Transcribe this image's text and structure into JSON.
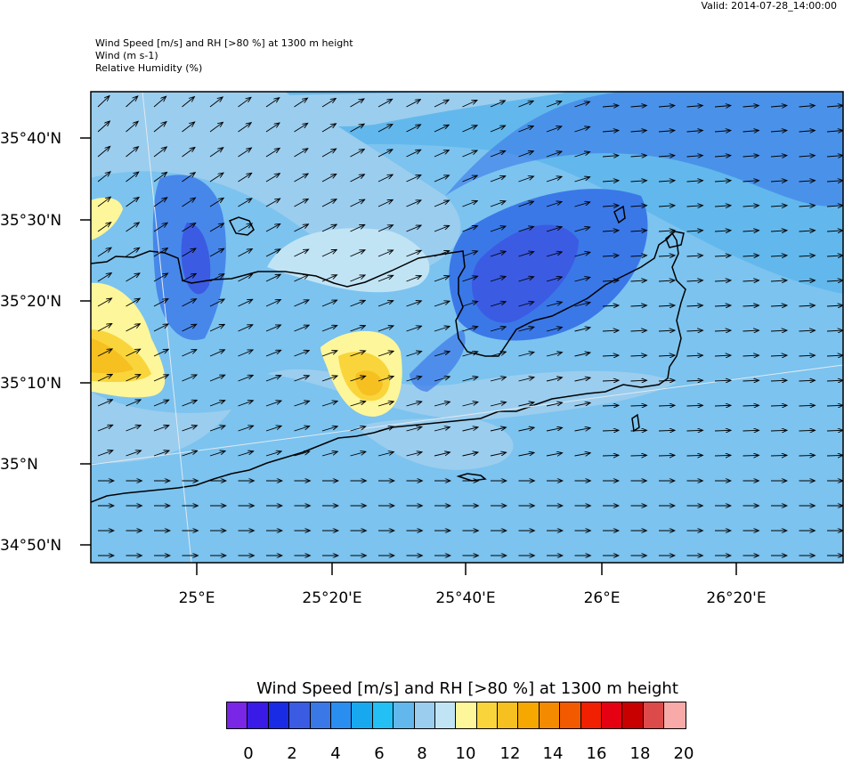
{
  "header": {
    "valid": "Valid: 2014-07-28_14:00:00",
    "line1": "Wind Speed [m/s] and RH [>80 %] at 1300 m height",
    "line2": "Wind   (m s-1)",
    "line3": "Relative Humidity   (%)"
  },
  "axes": {
    "lat_labels": [
      "35°40'N",
      "35°30'N",
      "35°20'N",
      "35°10'N",
      "35°N",
      "34°50'N"
    ],
    "lon_labels": [
      "25°E",
      "25°20'E",
      "25°40'E",
      "26°E",
      "26°20'E"
    ]
  },
  "legend": {
    "title": "Wind Speed [m/s] and RH [>80 %] at 1300 m height",
    "colors": [
      "#7a26e6",
      "#3a1ae6",
      "#1a2be6",
      "#3b5be3",
      "#3a78e8",
      "#2a8ef0",
      "#18a8f0",
      "#22c0f5",
      "#62b8ec",
      "#9bcdee",
      "#c1e4f5",
      "#fef69a",
      "#f9d53b",
      "#f6c020",
      "#f6a800",
      "#f48a00",
      "#f35a00",
      "#f02000",
      "#e50012",
      "#c80000",
      "#dc4a4a",
      "#f8aaa8"
    ],
    "labels": [
      "0",
      "2",
      "4",
      "6",
      "8",
      "10",
      "12",
      "14",
      "16",
      "18",
      "20"
    ]
  }
}
